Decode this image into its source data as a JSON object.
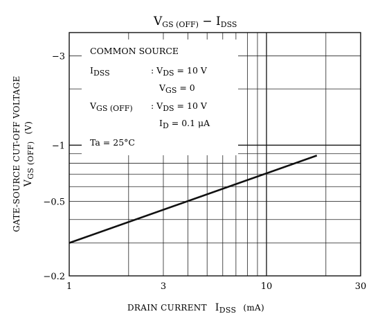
{
  "chart_data": {
    "type": "line",
    "title": {
      "main": "V",
      "sub1": "GS (OFF)",
      "dash": " − ",
      "main2": "I",
      "sub2": "DSS"
    },
    "xlabel": {
      "text": "DRAIN CURRENT",
      "sym": "I",
      "sub": "DSS",
      "unit": "(mA)"
    },
    "ylabel": {
      "line1": "GATE-SOURCE CUT-OFF VOLTAGE",
      "sym": "V",
      "sub": "GS (OFF)",
      "unit": "(V)"
    },
    "x_scale": "log",
    "y_scale": "log",
    "xlim": [
      1,
      30
    ],
    "ylim": [
      -0.2,
      -4
    ],
    "x_ticks": [
      "1",
      "3",
      "10",
      "30"
    ],
    "y_ticks": [
      "−0.2",
      "−0.5",
      "−1",
      "−3"
    ],
    "grid": true,
    "series": [
      {
        "x": [
          1,
          18
        ],
        "y": [
          -0.3,
          -0.88
        ]
      }
    ],
    "legend_box": {
      "heading": "COMMON SOURCE",
      "idss_sym": "I",
      "idss_sub": "DSS",
      "cond1": ": V",
      "cond1_sub": "DS",
      "cond1_val": " = 10 V",
      "cond2": "V",
      "cond2_sub": "GS",
      "cond2_val": " = 0",
      "vgs_sym": "V",
      "vgs_sub": "GS (OFF)",
      "cond3": ": V",
      "cond3_sub": "DS",
      "cond3_val": " = 10 V",
      "cond4": "I",
      "cond4_sub": "D",
      "cond4_val": " = 0.1 μA",
      "ta": "Ta = 25°C"
    }
  }
}
